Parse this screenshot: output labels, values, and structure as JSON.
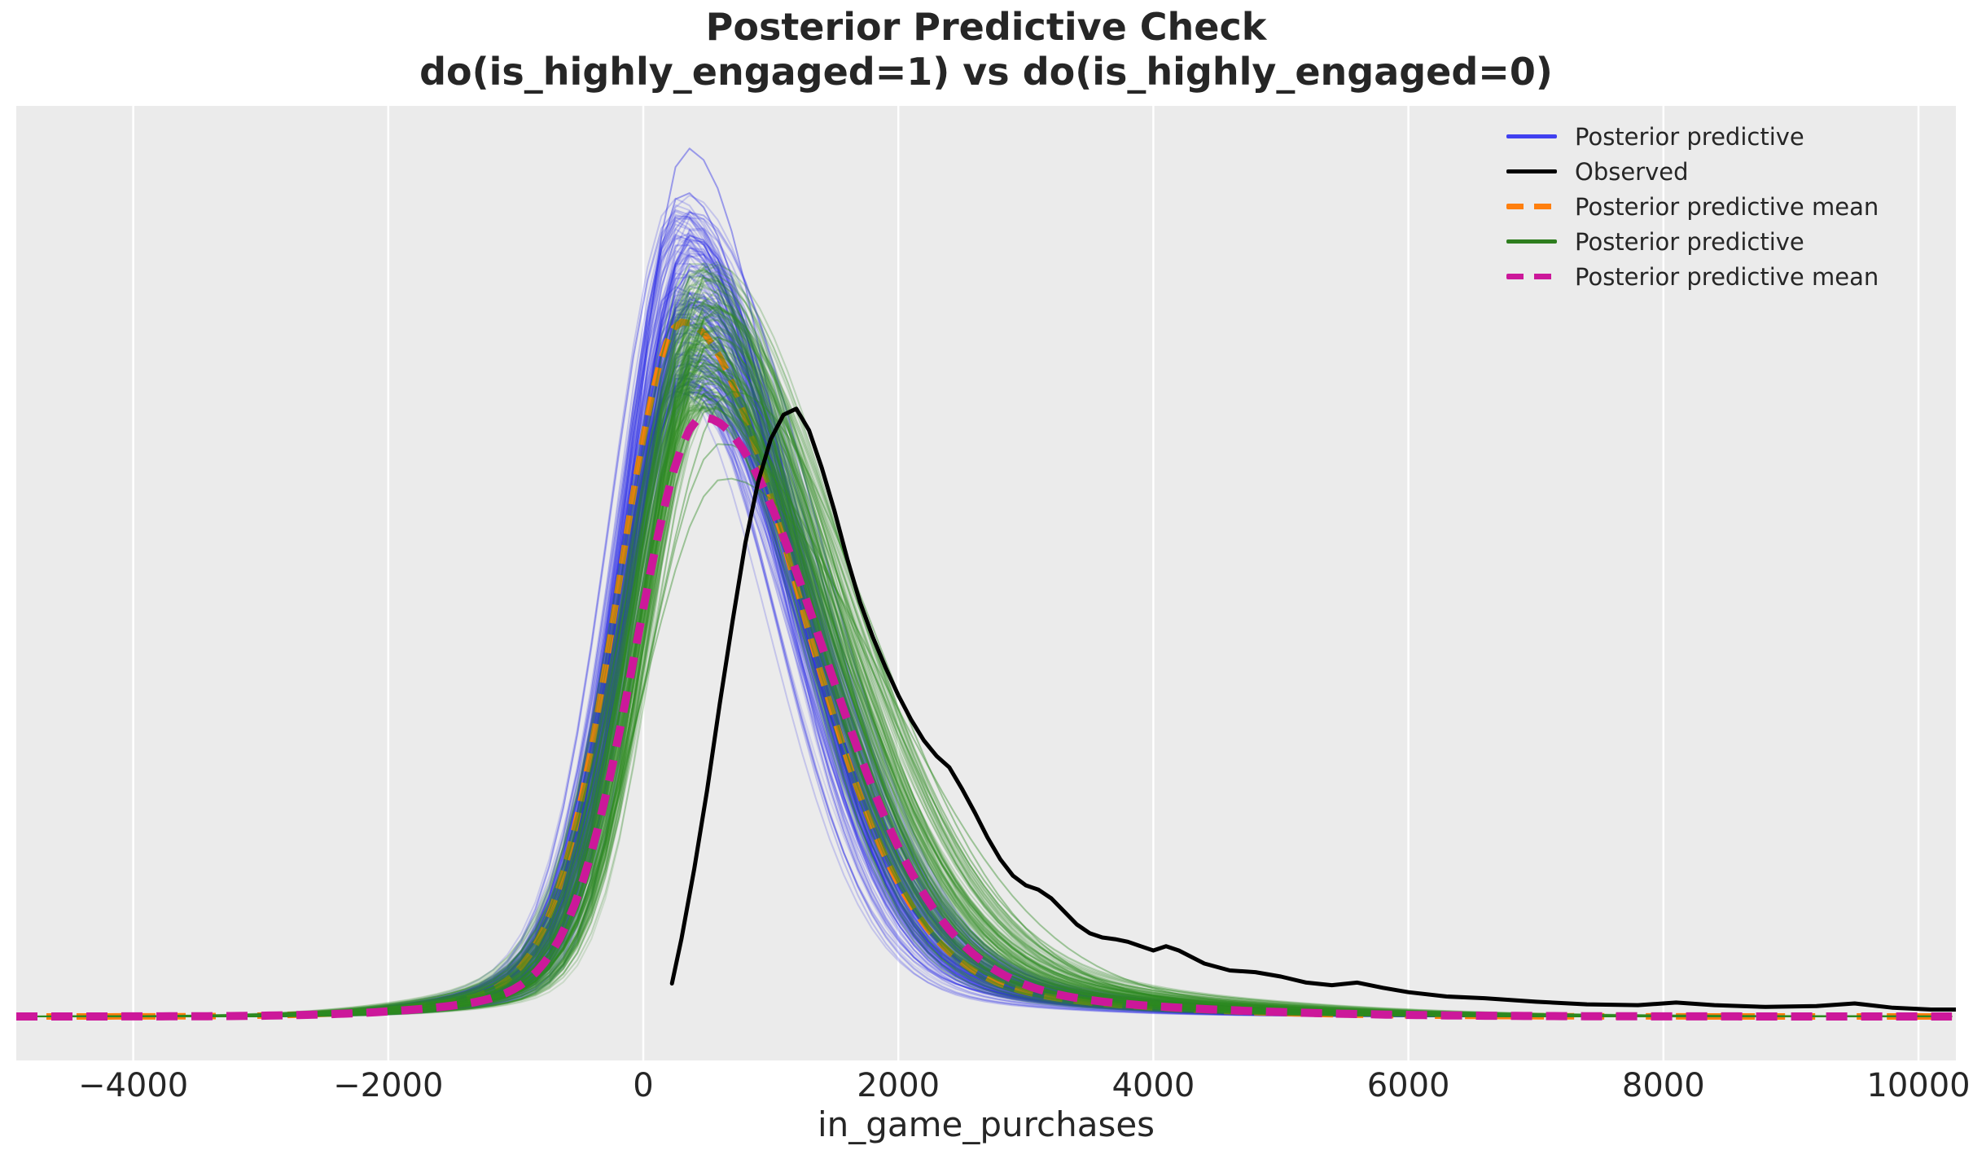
{
  "title": {
    "line1": "Posterior Predictive Check",
    "line2": "do(is_highly_engaged=1) vs do(is_highly_engaged=0)"
  },
  "axis": {
    "xlabel": "in_game_purchases"
  },
  "chart_data": {
    "type": "line",
    "title": "Posterior Predictive Check",
    "subtitle": "do(is_highly_engaged=1) vs do(is_highly_engaged=0)",
    "xlabel": "in_game_purchases",
    "ylabel": "",
    "y_axis_visible": false,
    "xlim": [
      -4917,
      10294
    ],
    "ylim_relative_density": [
      -0.05,
      1.05
    ],
    "x_ticks": [
      -4000,
      -2000,
      0,
      2000,
      4000,
      6000,
      8000,
      10000
    ],
    "grid": "vertical-only",
    "background_color": "#ebebeb",
    "gridline_color": "#ffffff",
    "text_color": "#262626",
    "legend": {
      "position": "upper-right",
      "frame": false,
      "entries": [
        {
          "label": "Posterior predictive",
          "color": "#4040f0",
          "dash": false
        },
        {
          "label": "Observed",
          "color": "#000000",
          "dash": false
        },
        {
          "label": "Posterior predictive mean",
          "color": "#ff7f0e",
          "dash": true
        },
        {
          "label": "Posterior predictive",
          "color": "#2e7d1e",
          "dash": false
        },
        {
          "label": "Posterior predictive mean",
          "color": "#cc189a",
          "dash": true
        }
      ]
    },
    "series": [
      {
        "name": "Posterior predictive do(is_highly_engaged=1)",
        "kind": "kde-ensemble",
        "color": "#2828e8",
        "n_curves": 160,
        "opacity_range": [
          0.13,
          0.3
        ],
        "line_width": 2,
        "peak_x_range": [
          240,
          420
        ],
        "peak_height_range": [
          0.72,
          0.95
        ],
        "sigma_left_range": [
          400,
          540
        ],
        "sigma_right_range": [
          710,
          970
        ],
        "tail_weight_range": [
          0.05,
          0.09
        ],
        "highlight_curves": [
          {
            "peak_height": 1.0,
            "peak_x": 345,
            "sigma_left": 430,
            "sigma_right": 760
          },
          {
            "peak_height": 0.95,
            "peak_x": 315,
            "sigma_left": 450,
            "sigma_right": 790
          },
          {
            "peak_height": 0.9,
            "peak_x": 380,
            "sigma_left": 460,
            "sigma_right": 800
          }
        ],
        "seed": 7
      },
      {
        "name": "Posterior predictive mean do(is_highly_engaged=1)",
        "kind": "kde-mean",
        "color": "#ff7f0e",
        "dash": [
          23,
          14
        ],
        "line_width": 8,
        "peak_x": 310,
        "peak_height": 0.8,
        "sigma_left": 500,
        "sigma_right": 880,
        "tail_weight": 0.06
      },
      {
        "name": "Posterior predictive do(is_highly_engaged=0)",
        "kind": "kde-ensemble",
        "color": "#2e8b22",
        "n_curves": 160,
        "opacity_range": [
          0.13,
          0.3
        ],
        "line_width": 2,
        "peak_x_range": [
          380,
          580
        ],
        "peak_height_range": [
          0.7,
          0.87
        ],
        "sigma_left_range": [
          420,
          580
        ],
        "sigma_right_range": [
          770,
          1090
        ],
        "tail_weight_range": [
          0.05,
          0.1
        ],
        "highlight_curves": [
          {
            "peak_height": 0.62,
            "peak_x": 640,
            "sigma_left": 620,
            "sigma_right": 1250
          },
          {
            "peak_height": 0.66,
            "peak_x": 610,
            "sigma_left": 560,
            "sigma_right": 1150
          },
          {
            "peak_height": 0.72,
            "peak_x": 700,
            "sigma_left": 600,
            "sigma_right": 1100
          }
        ],
        "seed": 21
      },
      {
        "name": "Posterior predictive mean do(is_highly_engaged=0)",
        "kind": "kde-mean",
        "color": "#cc189a",
        "dash": [
          26,
          17
        ],
        "line_width": 10,
        "peak_x": 470,
        "peak_height": 0.69,
        "sigma_left": 520,
        "sigma_right": 920,
        "tail_weight": 0.06
      },
      {
        "name": "Observed",
        "kind": "kde-observed",
        "color": "#000000",
        "line_width": 5,
        "points": [
          [
            225,
            0.038
          ],
          [
            300,
            0.09
          ],
          [
            400,
            0.17
          ],
          [
            500,
            0.26
          ],
          [
            600,
            0.36
          ],
          [
            700,
            0.455
          ],
          [
            800,
            0.545
          ],
          [
            900,
            0.615
          ],
          [
            1000,
            0.665
          ],
          [
            1100,
            0.693
          ],
          [
            1200,
            0.7
          ],
          [
            1300,
            0.675
          ],
          [
            1400,
            0.632
          ],
          [
            1500,
            0.582
          ],
          [
            1600,
            0.527
          ],
          [
            1700,
            0.477
          ],
          [
            1800,
            0.437
          ],
          [
            1900,
            0.402
          ],
          [
            2000,
            0.37
          ],
          [
            2100,
            0.342
          ],
          [
            2200,
            0.318
          ],
          [
            2300,
            0.3
          ],
          [
            2400,
            0.287
          ],
          [
            2500,
            0.262
          ],
          [
            2600,
            0.235
          ],
          [
            2700,
            0.206
          ],
          [
            2800,
            0.181
          ],
          [
            2900,
            0.162
          ],
          [
            3000,
            0.151
          ],
          [
            3100,
            0.146
          ],
          [
            3200,
            0.136
          ],
          [
            3300,
            0.121
          ],
          [
            3400,
            0.106
          ],
          [
            3500,
            0.096
          ],
          [
            3600,
            0.091
          ],
          [
            3700,
            0.089
          ],
          [
            3800,
            0.086
          ],
          [
            3900,
            0.081
          ],
          [
            4000,
            0.076
          ],
          [
            4100,
            0.081
          ],
          [
            4200,
            0.076
          ],
          [
            4400,
            0.061
          ],
          [
            4600,
            0.053
          ],
          [
            4800,
            0.051
          ],
          [
            5000,
            0.046
          ],
          [
            5200,
            0.039
          ],
          [
            5400,
            0.036
          ],
          [
            5600,
            0.039
          ],
          [
            5800,
            0.033
          ],
          [
            6000,
            0.028
          ],
          [
            6300,
            0.023
          ],
          [
            6600,
            0.021
          ],
          [
            7000,
            0.017
          ],
          [
            7400,
            0.014
          ],
          [
            7800,
            0.013
          ],
          [
            8100,
            0.016
          ],
          [
            8400,
            0.013
          ],
          [
            8800,
            0.011
          ],
          [
            9200,
            0.012
          ],
          [
            9500,
            0.015
          ],
          [
            9800,
            0.01
          ],
          [
            10100,
            0.008
          ],
          [
            10294,
            0.008
          ]
        ]
      }
    ]
  }
}
